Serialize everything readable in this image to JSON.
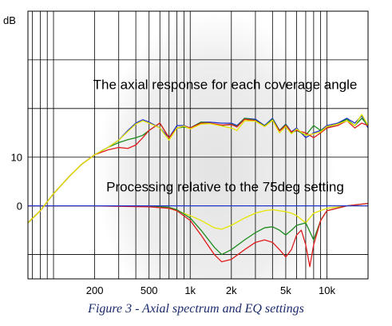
{
  "chart_data": {
    "type": "line",
    "ylabel": "dB",
    "xscale": "log",
    "xlim": [
      65,
      20000
    ],
    "ylim": [
      -15,
      40
    ],
    "ytick_labels": [
      {
        "value": 10,
        "label": "10"
      },
      {
        "value": 0,
        "label": "0"
      }
    ],
    "xtick_labels": [
      {
        "value": 200,
        "label": "200"
      },
      {
        "value": 500,
        "label": "500"
      },
      {
        "value": 1000,
        "label": "1k"
      },
      {
        "value": 2000,
        "label": "2k"
      },
      {
        "value": 5000,
        "label": "5k"
      },
      {
        "value": 10000,
        "label": "10k"
      }
    ],
    "annotations": [
      {
        "text": "The axial response for each coverage angle",
        "x": 1800,
        "y": 24
      },
      {
        "text": "Processing relative to the 75deg setting",
        "x": 1800,
        "y": 3
      }
    ],
    "colors": {
      "blue": "#2233cc",
      "green": "#1c8c1c",
      "red": "#e01c1c",
      "yellow": "#e6e600",
      "background_glow": "#e3e3e3"
    },
    "response_series": [
      {
        "color": "blue",
        "x": [
          65,
          80,
          100,
          130,
          160,
          200,
          250,
          300,
          350,
          400,
          450,
          500,
          600,
          700,
          800,
          900,
          1000,
          1200,
          1400,
          1700,
          2000,
          2200,
          2500,
          3000,
          3500,
          4000,
          4500,
          5000,
          5500,
          6000,
          7000,
          8000,
          9000,
          10000,
          12000,
          14000,
          16000,
          18000,
          20000
        ],
        "y": [
          -3.5,
          -1,
          2.5,
          6,
          8.5,
          10.5,
          12,
          13.5,
          15.5,
          17,
          17.7,
          17.2,
          16,
          14,
          16.5,
          16.5,
          16,
          17.2,
          17.2,
          17,
          17,
          16.5,
          18,
          17.8,
          16.5,
          18,
          15.5,
          16.8,
          15.2,
          16,
          14,
          15,
          15.5,
          16.5,
          17,
          18,
          17,
          18.5,
          16
        ]
      },
      {
        "color": "green",
        "x": [
          65,
          80,
          100,
          130,
          160,
          200,
          250,
          300,
          350,
          400,
          450,
          500,
          600,
          700,
          800,
          900,
          1000,
          1200,
          1400,
          1700,
          2000,
          2200,
          2500,
          3000,
          3500,
          4000,
          4500,
          5000,
          5500,
          6000,
          7000,
          8000,
          9000,
          10000,
          12000,
          14000,
          16000,
          18000,
          20000
        ],
        "y": [
          -3.5,
          -1,
          2.5,
          6,
          8.5,
          10.5,
          12,
          13,
          13.6,
          14,
          14.5,
          15.5,
          17,
          14,
          16,
          16.2,
          16,
          17.2,
          17,
          16.5,
          16.8,
          16.3,
          18,
          17.6,
          16.4,
          17.8,
          15.5,
          16.7,
          15,
          15.5,
          14.5,
          16.5,
          15.5,
          16.2,
          16.8,
          17.8,
          16.5,
          18,
          16.5
        ]
      },
      {
        "color": "red",
        "x": [
          65,
          80,
          100,
          130,
          160,
          200,
          250,
          300,
          350,
          400,
          450,
          500,
          600,
          700,
          800,
          900,
          1000,
          1200,
          1400,
          1700,
          2000,
          2200,
          2500,
          3000,
          3500,
          4000,
          4500,
          5000,
          5500,
          6000,
          7000,
          8000,
          9000,
          10000,
          12000,
          14000,
          16000,
          18000,
          20000
        ],
        "y": [
          -3.5,
          -1,
          2.5,
          6,
          8.5,
          10.5,
          11.5,
          12,
          11.8,
          12.5,
          14,
          15.5,
          17,
          14,
          16,
          16.4,
          16,
          17,
          17,
          16.6,
          16.7,
          16.2,
          17.8,
          17.5,
          16.3,
          17.6,
          15.4,
          16.5,
          15.2,
          15.5,
          15,
          14,
          15,
          16,
          16.5,
          17.5,
          16,
          17,
          16.5
        ]
      },
      {
        "color": "yellow",
        "x": [
          65,
          80,
          100,
          130,
          160,
          200,
          250,
          300,
          350,
          400,
          450,
          500,
          600,
          700,
          800,
          900,
          1000,
          1200,
          1400,
          1700,
          2000,
          2200,
          2500,
          3000,
          3500,
          4000,
          4500,
          5000,
          5500,
          6000,
          7000,
          8000,
          9000,
          10000,
          12000,
          14000,
          16000,
          18000,
          20000
        ],
        "y": [
          -3.5,
          -1,
          2.5,
          6,
          8.5,
          10.5,
          12,
          13.5,
          15.3,
          16.8,
          17.5,
          17,
          16,
          13.5,
          16,
          16.4,
          15.8,
          16.8,
          16.9,
          16.4,
          16,
          15.5,
          17.5,
          17.4,
          16.3,
          17.6,
          15,
          16.3,
          14.8,
          15.8,
          14.5,
          14.8,
          15.2,
          16.3,
          16.8,
          17.5,
          16.5,
          18.8,
          16.5
        ]
      }
    ],
    "eq_series": [
      {
        "color": "yellow",
        "x": [
          65,
          200,
          500,
          700,
          800,
          1000,
          1200,
          1500,
          1700,
          2000,
          2500,
          3000,
          3500,
          4000,
          4500,
          5000,
          5500,
          6000,
          7000,
          8000,
          10000,
          14000,
          20000
        ],
        "y": [
          0,
          0,
          0,
          -0.5,
          -1,
          -2,
          -3,
          -4.5,
          -4.8,
          -4,
          -2.5,
          -1.5,
          -1,
          -0.8,
          -1,
          -1.2,
          -1.5,
          -2,
          -3.5,
          -1.5,
          -0.5,
          0,
          0
        ]
      },
      {
        "color": "green",
        "x": [
          65,
          200,
          500,
          700,
          800,
          1000,
          1200,
          1500,
          1700,
          2000,
          2500,
          3000,
          3500,
          4000,
          4500,
          5000,
          5500,
          6000,
          7000,
          8000,
          9000,
          10000,
          14000,
          20000
        ],
        "y": [
          0,
          0,
          0,
          -0.3,
          -0.8,
          -2.5,
          -5,
          -8.5,
          -10,
          -9,
          -7,
          -5.5,
          -4.5,
          -4.3,
          -5,
          -6,
          -5,
          -4,
          -3.5,
          -7,
          -3,
          -1,
          0,
          0.5
        ]
      },
      {
        "color": "red",
        "x": [
          65,
          200,
          500,
          700,
          800,
          1000,
          1200,
          1500,
          1700,
          2000,
          2500,
          3000,
          3500,
          4000,
          4500,
          5000,
          5500,
          6000,
          6500,
          7000,
          7500,
          8000,
          9000,
          10000,
          14000,
          20000
        ],
        "y": [
          0,
          0,
          -0.2,
          -0.5,
          -1,
          -3,
          -6,
          -10,
          -11.5,
          -11,
          -9,
          -7.5,
          -7,
          -7.5,
          -9,
          -10.5,
          -9,
          -6,
          -5,
          -8,
          -12.5,
          -8,
          -3,
          -1,
          0,
          0.5
        ]
      },
      {
        "color": "blue",
        "x": [
          65,
          20000
        ],
        "y": [
          0,
          0
        ]
      }
    ]
  },
  "caption": "Figure 3 - Axial spectrum and EQ settings"
}
